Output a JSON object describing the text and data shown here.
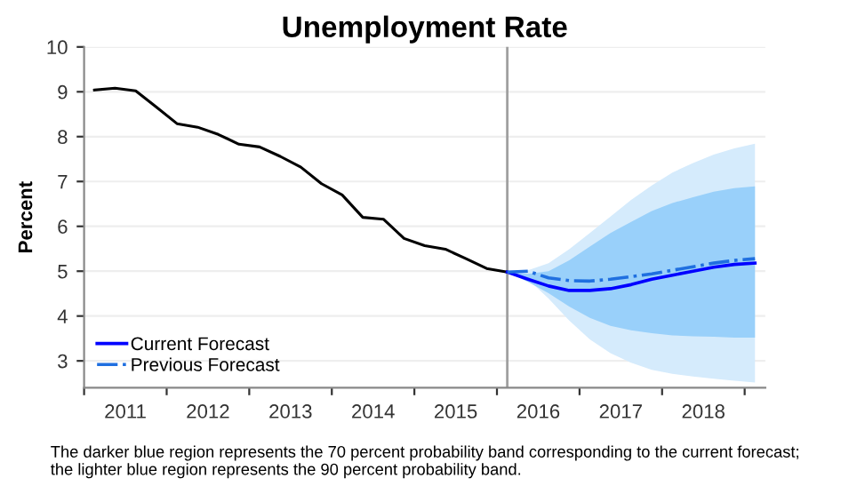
{
  "chart_data": {
    "type": "line",
    "title": "Unemployment Rate",
    "ylabel": "Percent",
    "annotations": [
      "The darker blue region represents the 70 percent probability band corresponding to the current forecast;\nthe lighter blue region represents the 90 percent probability band."
    ],
    "xlim": [
      2011,
      2019.25
    ],
    "ylim": [
      2.4,
      10
    ],
    "xticks": [
      {
        "value": 2011,
        "label": null
      },
      {
        "value": 2011.5,
        "label": "2011"
      },
      {
        "value": 2012,
        "label": null
      },
      {
        "value": 2012.5,
        "label": "2012"
      },
      {
        "value": 2013,
        "label": null
      },
      {
        "value": 2013.5,
        "label": "2013"
      },
      {
        "value": 2014,
        "label": null
      },
      {
        "value": 2014.5,
        "label": "2014"
      },
      {
        "value": 2015,
        "label": null
      },
      {
        "value": 2015.5,
        "label": "2015"
      },
      {
        "value": 2016,
        "label": null
      },
      {
        "value": 2016.5,
        "label": "2016"
      },
      {
        "value": 2017,
        "label": null
      },
      {
        "value": 2017.5,
        "label": "2017"
      },
      {
        "value": 2018,
        "label": null
      },
      {
        "value": 2018.5,
        "label": "2018"
      },
      {
        "value": 2019,
        "label": null
      }
    ],
    "yticks": [
      3,
      4,
      5,
      6,
      7,
      8,
      9,
      10
    ],
    "grid": "y",
    "legend": "bottom left",
    "ref_lines": [
      {
        "axis": "x",
        "value": 2016.125,
        "color": "#a0a0a0"
      }
    ],
    "series": [
      {
        "color": "#d5ebfc",
        "x": [
          2016.125,
          2016.375,
          2016.625,
          2016.875,
          2017.125,
          2017.375,
          2017.625,
          2017.875,
          2018.125,
          2018.375,
          2018.625,
          2018.875,
          2019.125
        ],
        "values": [
          null,
          null,
          null,
          null,
          null,
          null,
          null,
          null,
          null,
          null,
          null,
          null,
          null
        ],
        "lower": [
          4.98,
          4.82,
          4.39,
          3.9,
          3.48,
          3.17,
          2.96,
          2.8,
          2.71,
          2.65,
          2.6,
          2.56,
          2.52
        ],
        "upper": [
          4.98,
          5.02,
          5.18,
          5.49,
          5.85,
          6.22,
          6.59,
          6.91,
          7.2,
          7.41,
          7.6,
          7.74,
          7.84
        ]
      },
      {
        "color": "#99d0fa",
        "x": [
          2016.125,
          2016.375,
          2016.625,
          2016.875,
          2017.125,
          2017.375,
          2017.625,
          2017.875,
          2018.125,
          2018.375,
          2018.625,
          2018.875,
          2019.125
        ],
        "values": [
          null,
          null,
          null,
          null,
          null,
          null,
          null,
          null,
          null,
          null,
          null,
          null,
          null
        ],
        "lower": [
          4.98,
          4.76,
          4.51,
          4.21,
          3.96,
          3.78,
          3.68,
          3.62,
          3.57,
          3.55,
          3.54,
          3.52,
          3.52
        ],
        "upper": [
          4.98,
          4.94,
          5.0,
          5.24,
          5.55,
          5.85,
          6.1,
          6.34,
          6.52,
          6.65,
          6.77,
          6.85,
          6.89
        ]
      },
      {
        "color": "#000000",
        "x": [
          2011.125,
          2011.375,
          2011.625,
          2011.875,
          2012.125,
          2012.375,
          2012.625,
          2012.875,
          2013.125,
          2013.375,
          2013.625,
          2013.875,
          2014.125,
          2014.375,
          2014.625,
          2014.875,
          2015.125,
          2015.375,
          2015.625,
          2015.875,
          2016.125
        ],
        "values": [
          9.04,
          9.08,
          9.02,
          8.66,
          8.29,
          8.21,
          8.05,
          7.83,
          7.77,
          7.56,
          7.32,
          6.95,
          6.7,
          6.2,
          6.16,
          5.73,
          5.57,
          5.49,
          5.28,
          5.06,
          4.98
        ]
      },
      {
        "name": "Current Forecast",
        "color": "#0000ff",
        "line_style": "solid",
        "x": [
          2016.125,
          2016.375,
          2016.625,
          2016.875,
          2017.125,
          2017.375,
          2017.625,
          2017.875,
          2018.125,
          2018.375,
          2018.625,
          2018.875,
          2019.125
        ],
        "values": [
          4.98,
          4.82,
          4.67,
          4.57,
          4.57,
          4.61,
          4.7,
          4.82,
          4.91,
          5.0,
          5.09,
          5.15,
          5.18
        ]
      },
      {
        "name": "Previous Forecast",
        "color": "#1f6fe0",
        "line_style": "dashdot",
        "x": [
          2016.125,
          2016.375,
          2016.625,
          2016.875,
          2017.125,
          2017.375,
          2017.625,
          2017.875,
          2018.125,
          2018.375,
          2018.625,
          2018.875,
          2019.125
        ],
        "values": [
          4.98,
          5.0,
          4.85,
          4.79,
          4.78,
          4.82,
          4.88,
          4.94,
          5.02,
          5.1,
          5.18,
          5.24,
          5.28
        ]
      }
    ]
  }
}
